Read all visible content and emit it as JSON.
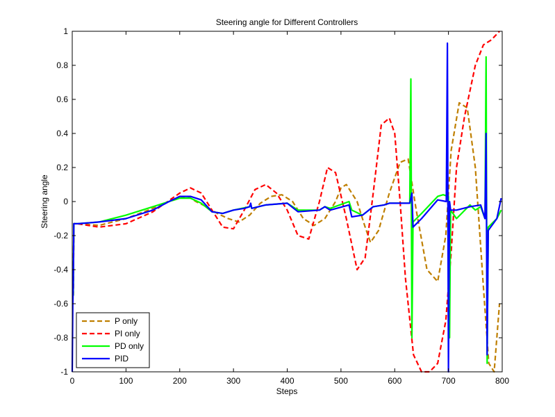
{
  "chart_data": {
    "type": "line",
    "title": "Steering angle for Different Controllers",
    "xlabel": "Steps",
    "ylabel": "Steering angle",
    "xlim": [
      0,
      800
    ],
    "ylim": [
      -1,
      1
    ],
    "xticks": [
      0,
      100,
      200,
      300,
      400,
      500,
      600,
      700,
      800
    ],
    "yticks": [
      -1,
      -0.8,
      -0.6,
      -0.4,
      -0.2,
      0,
      0.2,
      0.4,
      0.6,
      0.8,
      1
    ],
    "xtick_labels": [
      "0",
      "100",
      "200",
      "300",
      "400",
      "500",
      "600",
      "700",
      "800"
    ],
    "ytick_labels": [
      "-1",
      "-0.8",
      "-0.6",
      "-0.4",
      "-0.2",
      "0",
      "0.2",
      "0.4",
      "0.6",
      "0.8",
      "1"
    ],
    "grid": false,
    "legend_position": "bottom-left",
    "series": [
      {
        "name": "P only",
        "color": "#bf7f00",
        "style": "dashed",
        "x": [
          0,
          2,
          3,
          10,
          50,
          100,
          150,
          180,
          200,
          215,
          230,
          250,
          270,
          290,
          310,
          330,
          350,
          370,
          390,
          410,
          430,
          450,
          470,
          490,
          500,
          510,
          530,
          545,
          555,
          570,
          590,
          610,
          625,
          640,
          660,
          680,
          695,
          705,
          720,
          735,
          750,
          765,
          775,
          785,
          795
        ],
        "y": [
          -0.55,
          -0.55,
          -0.13,
          -0.13,
          -0.14,
          -0.1,
          -0.04,
          0.0,
          0.02,
          0.03,
          0.0,
          -0.03,
          -0.07,
          -0.1,
          -0.12,
          -0.08,
          -0.01,
          0.03,
          0.04,
          0.0,
          -0.1,
          -0.14,
          -0.1,
          0.0,
          0.08,
          0.1,
          0.0,
          -0.15,
          -0.24,
          -0.17,
          0.05,
          0.23,
          0.25,
          -0.05,
          -0.4,
          -0.47,
          -0.2,
          0.3,
          0.58,
          0.55,
          0.2,
          -0.5,
          -0.95,
          -1.0,
          -0.6
        ]
      },
      {
        "name": "PI only",
        "color": "#ff0000",
        "style": "dashed",
        "x": [
          0,
          2,
          3,
          10,
          50,
          100,
          150,
          200,
          220,
          240,
          260,
          280,
          300,
          320,
          340,
          360,
          380,
          400,
          420,
          440,
          460,
          475,
          490,
          510,
          530,
          545,
          560,
          575,
          590,
          600,
          610,
          620,
          635,
          650,
          665,
          680,
          695,
          705,
          715,
          730,
          750,
          765,
          780,
          795
        ],
        "y": [
          -0.55,
          -0.55,
          -0.13,
          -0.13,
          -0.15,
          -0.13,
          -0.06,
          0.05,
          0.08,
          0.05,
          -0.05,
          -0.15,
          -0.16,
          -0.05,
          0.07,
          0.1,
          0.05,
          -0.05,
          -0.2,
          -0.22,
          0.0,
          0.2,
          0.17,
          -0.1,
          -0.4,
          -0.33,
          0.05,
          0.45,
          0.49,
          0.4,
          0.0,
          -0.45,
          -0.9,
          -1.0,
          -1.0,
          -0.95,
          -0.7,
          -0.3,
          0.2,
          0.5,
          0.8,
          0.92,
          0.95,
          1.0
        ]
      },
      {
        "name": "PD only",
        "color": "#00ff00",
        "style": "solid",
        "x": [
          0,
          2,
          3,
          10,
          50,
          100,
          150,
          180,
          200,
          220,
          240,
          260,
          280,
          300,
          330,
          332,
          334,
          360,
          400,
          420,
          460,
          470,
          480,
          515,
          520,
          540,
          560,
          580,
          590,
          628,
          630,
          632,
          634,
          650,
          680,
          690,
          700,
          702,
          704,
          715,
          740,
          750,
          760,
          768,
          770,
          772,
          774,
          790,
          798
        ],
        "y": [
          -0.55,
          -0.55,
          -0.13,
          -0.13,
          -0.12,
          -0.08,
          -0.03,
          0.0,
          0.02,
          0.02,
          -0.01,
          -0.06,
          -0.07,
          -0.05,
          -0.03,
          -0.02,
          -0.04,
          -0.02,
          -0.01,
          -0.05,
          -0.05,
          -0.03,
          -0.04,
          0.0,
          -0.05,
          -0.08,
          -0.03,
          -0.02,
          -0.01,
          -0.01,
          0.72,
          -0.8,
          -0.12,
          -0.07,
          0.03,
          0.04,
          0.03,
          -0.8,
          -0.05,
          -0.1,
          -0.02,
          -0.05,
          -0.03,
          -0.1,
          0.85,
          -0.95,
          -0.15,
          -0.1,
          -0.05
        ]
      },
      {
        "name": "PID",
        "color": "#0000ff",
        "style": "solid",
        "x": [
          0,
          1,
          2,
          3,
          10,
          50,
          100,
          150,
          180,
          200,
          220,
          240,
          260,
          280,
          300,
          320,
          330,
          332,
          334,
          360,
          400,
          420,
          460,
          470,
          480,
          515,
          520,
          540,
          560,
          580,
          590,
          628,
          632,
          634,
          650,
          680,
          696,
          698,
          700,
          702,
          704,
          715,
          740,
          760,
          768,
          770,
          772,
          774,
          790,
          798
        ],
        "y": [
          -1.0,
          -0.6,
          -0.5,
          -0.13,
          -0.13,
          -0.12,
          -0.1,
          -0.05,
          0.0,
          0.03,
          0.03,
          0.01,
          -0.06,
          -0.07,
          -0.05,
          -0.04,
          -0.03,
          -0.01,
          -0.04,
          -0.02,
          -0.01,
          -0.06,
          -0.05,
          -0.03,
          -0.05,
          -0.02,
          -0.09,
          -0.08,
          -0.03,
          -0.02,
          -0.01,
          -0.01,
          0.05,
          -0.15,
          -0.1,
          0.01,
          0.0,
          0.93,
          -1.0,
          0.0,
          -0.05,
          -0.05,
          -0.03,
          -0.02,
          -0.1,
          0.4,
          -0.9,
          -0.17,
          -0.1,
          0.02
        ]
      }
    ]
  }
}
